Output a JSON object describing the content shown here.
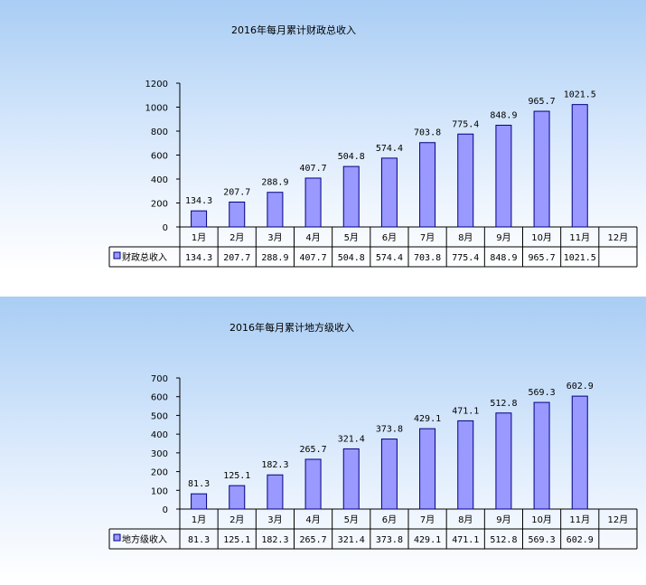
{
  "chart_data": [
    {
      "type": "bar",
      "title": "2016年每月累计财政总收入",
      "categories": [
        "1月",
        "2月",
        "3月",
        "4月",
        "5月",
        "6月",
        "7月",
        "8月",
        "9月",
        "10月",
        "11月",
        "12月"
      ],
      "series": [
        {
          "name": "财政总收入",
          "values": [
            134.3,
            207.7,
            288.9,
            407.7,
            504.8,
            574.4,
            703.8,
            775.4,
            848.9,
            965.7,
            1021.5,
            null
          ]
        }
      ],
      "value_labels": [
        "134.3",
        "207.7",
        "288.9",
        "407.7",
        "504.8",
        "574.4",
        "703.8",
        "775.4",
        "848.9",
        "965.7",
        "1021.5",
        ""
      ],
      "yticks": [
        "0",
        "200",
        "400",
        "600",
        "800",
        "1000",
        "1200"
      ],
      "ylim": [
        0,
        1200
      ],
      "ystep": 200,
      "grid": false,
      "legend": "data-table",
      "colors": {
        "bar": "#9999ff",
        "bar_stroke": "#000080"
      }
    },
    {
      "type": "bar",
      "title": "2016年每月累计地方级收入",
      "categories": [
        "1月",
        "2月",
        "3月",
        "4月",
        "5月",
        "6月",
        "7月",
        "8月",
        "9月",
        "10月",
        "11月",
        "12月"
      ],
      "series": [
        {
          "name": "地方级收入",
          "values": [
            81.3,
            125.1,
            182.3,
            265.7,
            321.4,
            373.8,
            429.1,
            471.1,
            512.8,
            569.3,
            602.9,
            null
          ]
        }
      ],
      "value_labels": [
        "81.3",
        "125.1",
        "182.3",
        "265.7",
        "321.4",
        "373.8",
        "429.1",
        "471.1",
        "512.8",
        "569.3",
        "602.9",
        ""
      ],
      "yticks": [
        "0",
        "100",
        "200",
        "300",
        "400",
        "500",
        "600",
        "700"
      ],
      "ylim": [
        0,
        700
      ],
      "ystep": 100,
      "grid": false,
      "legend": "data-table",
      "colors": {
        "bar": "#9999ff",
        "bar_stroke": "#000080"
      }
    }
  ]
}
